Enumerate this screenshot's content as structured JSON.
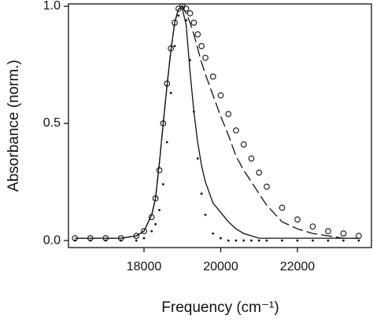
{
  "chart_data": {
    "type": "line",
    "x_label": "Frequency (cm⁻¹)",
    "y_label": "Absorbance (norm.)",
    "x": [
      16200,
      16600,
      17000,
      17400,
      17800,
      18000,
      18200,
      18300,
      18400,
      18500,
      18600,
      18700,
      18800,
      18900,
      19000,
      19100,
      19200,
      19300,
      19400,
      19500,
      19600,
      19800,
      20000,
      20200,
      20400,
      20600,
      20800,
      21000,
      21200,
      21600,
      22000,
      22400,
      22800,
      23200,
      23600
    ],
    "series": [
      {
        "style": "circles",
        "color": "#111111",
        "values": [
          0.01,
          0.01,
          0.01,
          0.01,
          0.02,
          0.04,
          0.1,
          0.18,
          0.3,
          0.5,
          0.67,
          0.82,
          0.93,
          0.99,
          1.0,
          0.99,
          0.97,
          0.93,
          0.88,
          0.83,
          0.78,
          0.7,
          0.62,
          0.54,
          0.47,
          0.41,
          0.35,
          0.29,
          0.23,
          0.14,
          0.09,
          0.06,
          0.04,
          0.03,
          0.02
        ]
      },
      {
        "style": "dashed",
        "color": "#111111",
        "values": [
          0.01,
          0.01,
          0.01,
          0.01,
          0.02,
          0.04,
          0.11,
          0.18,
          0.33,
          0.5,
          0.66,
          0.81,
          0.93,
          0.99,
          1.0,
          0.97,
          0.93,
          0.88,
          0.82,
          0.76,
          0.71,
          0.62,
          0.53,
          0.45,
          0.36,
          0.3,
          0.25,
          0.2,
          0.15,
          0.08,
          0.05,
          0.03,
          0.02,
          0.01,
          0.01
        ]
      },
      {
        "style": "solid",
        "color": "#111111",
        "values": [
          0.01,
          0.01,
          0.01,
          0.01,
          0.02,
          0.04,
          0.11,
          0.18,
          0.33,
          0.5,
          0.66,
          0.81,
          0.93,
          0.99,
          0.99,
          0.92,
          0.72,
          0.55,
          0.42,
          0.32,
          0.25,
          0.16,
          0.12,
          0.08,
          0.05,
          0.03,
          0.02,
          0.01,
          0.01,
          0.01,
          0.01,
          0.01,
          0.01,
          0.01,
          0.01
        ]
      },
      {
        "style": "dots",
        "color": "#111111",
        "values": [
          0,
          0,
          0,
          0,
          0,
          0.01,
          0.04,
          0.07,
          0.13,
          0.24,
          0.42,
          0.63,
          0.83,
          0.96,
          1.0,
          0.94,
          0.77,
          0.55,
          0.35,
          0.2,
          0.11,
          0.03,
          0.01,
          0,
          0,
          0,
          0,
          0,
          0,
          0,
          0,
          0,
          0,
          0,
          0
        ]
      }
    ],
    "xlim": [
      16030,
      23930
    ],
    "ylim": [
      -0.03,
      1.01
    ],
    "xticks": [
      18000,
      20000,
      22000
    ],
    "yticks": [
      {
        "value": 0,
        "label": "0.0"
      },
      0.5,
      {
        "value": 1,
        "label": "1.0"
      }
    ]
  }
}
